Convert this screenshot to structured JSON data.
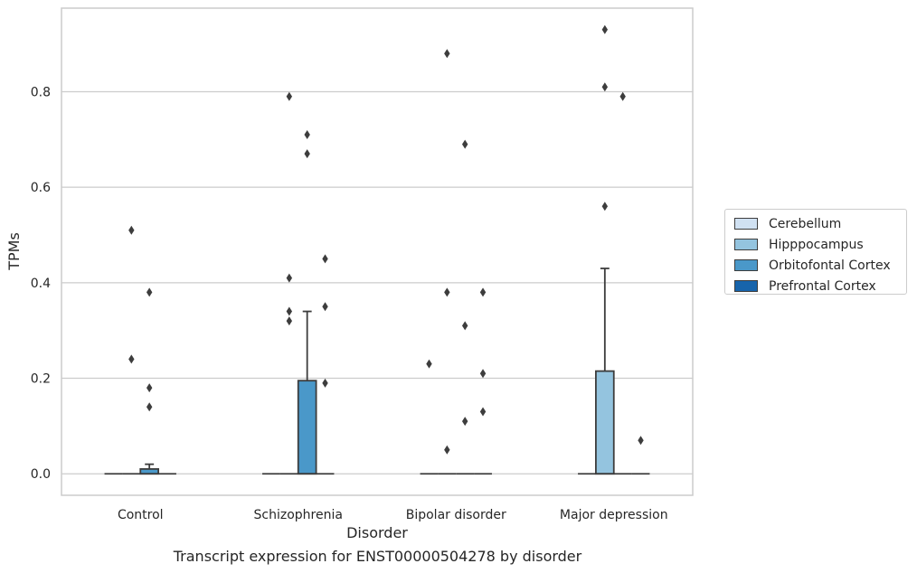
{
  "chart_data": {
    "type": "box",
    "xlabel": "Disorder",
    "ylabel": "TPMs",
    "caption": "Transcript expression for ENST00000504278 by disorder",
    "categories": [
      "Control",
      "Schizophrenia",
      "Bipolar disorder",
      "Major depression"
    ],
    "y_ticks": [
      "0.0",
      "0.2",
      "0.4",
      "0.6",
      "0.8"
    ],
    "y_tick_values": [
      0,
      0.2,
      0.4,
      0.6,
      0.8
    ],
    "ylim": [
      -0.045,
      0.975
    ],
    "grid": "horizontal",
    "legend_position": "right",
    "series": [
      {
        "name": "Cerebellum",
        "color": "#d0e1f2"
      },
      {
        "name": "Hipppocampus",
        "color": "#94c4df"
      },
      {
        "name": "Orbitofontal Cortex",
        "color": "#4a98c9"
      },
      {
        "name": "Prefrontal Cortex",
        "color": "#1764ab"
      }
    ],
    "boxes": [
      {
        "category": 0,
        "series": 0,
        "q1": 0,
        "median": 0,
        "q3": 0,
        "whisker_low": 0,
        "whisker_high": 0,
        "outliers": []
      },
      {
        "category": 0,
        "series": 1,
        "q1": 0,
        "median": 0,
        "q3": 0,
        "whisker_low": 0,
        "whisker_high": 0,
        "outliers": [
          0.51,
          0.24
        ]
      },
      {
        "category": 0,
        "series": 2,
        "q1": 0,
        "median": 0,
        "q3": 0.01,
        "whisker_low": 0,
        "whisker_high": 0.02,
        "outliers": [
          0.38,
          0.18,
          0.14
        ]
      },
      {
        "category": 0,
        "series": 3,
        "q1": 0,
        "median": 0,
        "q3": 0,
        "whisker_low": 0,
        "whisker_high": 0,
        "outliers": []
      },
      {
        "category": 1,
        "series": 0,
        "q1": 0,
        "median": 0,
        "q3": 0,
        "whisker_low": 0,
        "whisker_high": 0,
        "outliers": []
      },
      {
        "category": 1,
        "series": 1,
        "q1": 0,
        "median": 0,
        "q3": 0,
        "whisker_low": 0,
        "whisker_high": 0,
        "outliers": [
          0.79,
          0.41,
          0.34,
          0.32
        ]
      },
      {
        "category": 1,
        "series": 2,
        "q1": 0,
        "median": 0,
        "q3": 0.195,
        "whisker_low": 0,
        "whisker_high": 0.34,
        "outliers": [
          0.71,
          0.67
        ]
      },
      {
        "category": 1,
        "series": 3,
        "q1": 0,
        "median": 0,
        "q3": 0,
        "whisker_low": 0,
        "whisker_high": 0,
        "outliers": [
          0.45,
          0.35,
          0.19
        ]
      },
      {
        "category": 2,
        "series": 0,
        "q1": 0,
        "median": 0,
        "q3": 0,
        "whisker_low": 0,
        "whisker_high": 0,
        "outliers": [
          0.23
        ]
      },
      {
        "category": 2,
        "series": 1,
        "q1": 0,
        "median": 0,
        "q3": 0,
        "whisker_low": 0,
        "whisker_high": 0,
        "outliers": [
          0.88,
          0.38,
          0.05
        ]
      },
      {
        "category": 2,
        "series": 2,
        "q1": 0,
        "median": 0,
        "q3": 0,
        "whisker_low": 0,
        "whisker_high": 0,
        "outliers": [
          0.69,
          0.31,
          0.11
        ]
      },
      {
        "category": 2,
        "series": 3,
        "q1": 0,
        "median": 0,
        "q3": 0,
        "whisker_low": 0,
        "whisker_high": 0,
        "outliers": [
          0.38,
          0.21,
          0.13
        ]
      },
      {
        "category": 3,
        "series": 0,
        "q1": 0,
        "median": 0,
        "q3": 0,
        "whisker_low": 0,
        "whisker_high": 0,
        "outliers": []
      },
      {
        "category": 3,
        "series": 1,
        "q1": 0,
        "median": 0,
        "q3": 0.215,
        "whisker_low": 0,
        "whisker_high": 0.43,
        "outliers": [
          0.93,
          0.81,
          0.56
        ]
      },
      {
        "category": 3,
        "series": 2,
        "q1": 0,
        "median": 0,
        "q3": 0,
        "whisker_low": 0,
        "whisker_high": 0,
        "outliers": [
          0.79
        ]
      },
      {
        "category": 3,
        "series": 3,
        "q1": 0,
        "median": 0,
        "q3": 0,
        "whisker_low": 0,
        "whisker_high": 0,
        "outliers": [
          0.07
        ]
      }
    ]
  }
}
